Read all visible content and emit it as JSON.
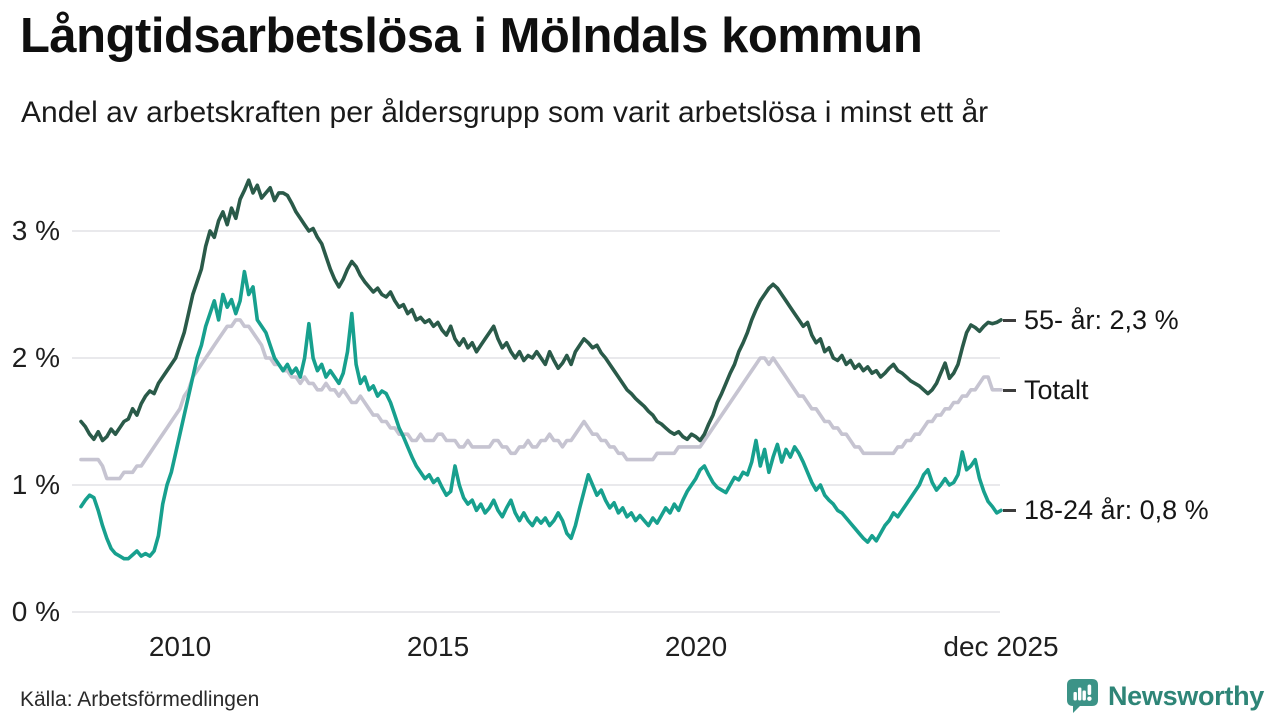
{
  "header": {
    "title": "Långtidsarbetslösa i Mölndals kommun",
    "subtitle": "Andel av arbetskraften per åldersgrupp som varit arbetslösa i minst ett år"
  },
  "footer": {
    "source": "Källa: Arbetsförmedlingen",
    "brand": "Newsworthy"
  },
  "colors": {
    "series_total": "#c6c4d1",
    "series_55": "#2a5a49",
    "series_1824": "#17a08e",
    "grid": "#e6e6e9",
    "label_dash": "#3d3d3d",
    "text": "#1a1a1a",
    "brand_icon": "#3c9387",
    "brand_text": "#2e8577"
  },
  "chart_data": {
    "type": "line",
    "title": "Långtidsarbetslösa i Mölndals kommun",
    "subtitle": "Andel av arbetskraften per åldersgrupp som varit arbetslösa i minst ett år",
    "frequency": "monthly",
    "legend": "end-labels",
    "grid": true,
    "ylim": [
      0,
      3.5
    ],
    "yticks": [
      {
        "label": "3 %",
        "value": 3
      },
      {
        "label": "2 %",
        "value": 2
      },
      {
        "label": "1 %",
        "value": 1
      },
      {
        "label": "0 %",
        "value": 0
      }
    ],
    "xticks": [
      {
        "label": "2010",
        "month_index": 23
      },
      {
        "label": "2015",
        "month_index": 83
      },
      {
        "label": "2020",
        "month_index": 143
      },
      {
        "label": "dec 2025",
        "month_index": 214
      }
    ],
    "series": [
      {
        "id": "total",
        "name": "Totalt",
        "end_label": "Totalt",
        "color": "#c6c4d1",
        "values": [
          1.2,
          1.2,
          1.2,
          1.2,
          1.2,
          1.15,
          1.05,
          1.05,
          1.05,
          1.05,
          1.1,
          1.1,
          1.1,
          1.15,
          1.15,
          1.2,
          1.25,
          1.3,
          1.35,
          1.4,
          1.45,
          1.5,
          1.55,
          1.6,
          1.7,
          1.75,
          1.85,
          1.9,
          1.95,
          2.0,
          2.05,
          2.1,
          2.15,
          2.2,
          2.25,
          2.25,
          2.3,
          2.3,
          2.25,
          2.25,
          2.2,
          2.15,
          2.1,
          2.0,
          2.0,
          1.95,
          1.95,
          1.9,
          1.9,
          1.85,
          1.85,
          1.8,
          1.85,
          1.8,
          1.8,
          1.75,
          1.75,
          1.8,
          1.75,
          1.75,
          1.7,
          1.75,
          1.7,
          1.65,
          1.65,
          1.7,
          1.65,
          1.6,
          1.55,
          1.55,
          1.5,
          1.5,
          1.45,
          1.45,
          1.4,
          1.4,
          1.4,
          1.35,
          1.35,
          1.4,
          1.35,
          1.35,
          1.35,
          1.4,
          1.4,
          1.35,
          1.35,
          1.35,
          1.3,
          1.3,
          1.35,
          1.3,
          1.3,
          1.3,
          1.3,
          1.3,
          1.35,
          1.35,
          1.3,
          1.3,
          1.25,
          1.25,
          1.3,
          1.3,
          1.35,
          1.3,
          1.3,
          1.35,
          1.35,
          1.4,
          1.35,
          1.35,
          1.3,
          1.35,
          1.35,
          1.4,
          1.45,
          1.5,
          1.45,
          1.4,
          1.4,
          1.35,
          1.35,
          1.3,
          1.3,
          1.25,
          1.25,
          1.2,
          1.2,
          1.2,
          1.2,
          1.2,
          1.2,
          1.2,
          1.25,
          1.25,
          1.25,
          1.25,
          1.25,
          1.3,
          1.3,
          1.3,
          1.3,
          1.3,
          1.3,
          1.35,
          1.4,
          1.45,
          1.5,
          1.55,
          1.6,
          1.65,
          1.7,
          1.75,
          1.8,
          1.85,
          1.9,
          1.95,
          2.0,
          2.0,
          1.95,
          2.0,
          1.95,
          1.9,
          1.85,
          1.8,
          1.75,
          1.7,
          1.7,
          1.65,
          1.6,
          1.6,
          1.55,
          1.5,
          1.5,
          1.45,
          1.45,
          1.4,
          1.4,
          1.35,
          1.3,
          1.3,
          1.25,
          1.25,
          1.25,
          1.25,
          1.25,
          1.25,
          1.25,
          1.25,
          1.3,
          1.3,
          1.35,
          1.35,
          1.4,
          1.4,
          1.45,
          1.5,
          1.5,
          1.55,
          1.55,
          1.6,
          1.6,
          1.65,
          1.65,
          1.7,
          1.7,
          1.75,
          1.75,
          1.8,
          1.85,
          1.85,
          1.75,
          1.75,
          1.75
        ]
      },
      {
        "id": "age55",
        "name": "55- år",
        "end_label": "55- år: 2,3 %",
        "end_value": 2.3,
        "color": "#2a5a49",
        "values": [
          1.5,
          1.46,
          1.4,
          1.36,
          1.42,
          1.35,
          1.38,
          1.44,
          1.4,
          1.45,
          1.5,
          1.52,
          1.6,
          1.55,
          1.64,
          1.7,
          1.74,
          1.72,
          1.8,
          1.85,
          1.9,
          1.95,
          2.0,
          2.1,
          2.2,
          2.35,
          2.5,
          2.6,
          2.7,
          2.88,
          3.0,
          2.95,
          3.08,
          3.15,
          3.05,
          3.18,
          3.1,
          3.25,
          3.32,
          3.4,
          3.3,
          3.36,
          3.26,
          3.3,
          3.34,
          3.24,
          3.3,
          3.3,
          3.28,
          3.22,
          3.15,
          3.1,
          3.05,
          3.0,
          3.02,
          2.95,
          2.9,
          2.8,
          2.7,
          2.62,
          2.56,
          2.62,
          2.7,
          2.76,
          2.72,
          2.65,
          2.6,
          2.56,
          2.52,
          2.55,
          2.5,
          2.48,
          2.52,
          2.45,
          2.4,
          2.42,
          2.35,
          2.38,
          2.3,
          2.32,
          2.28,
          2.3,
          2.25,
          2.28,
          2.22,
          2.18,
          2.25,
          2.15,
          2.1,
          2.15,
          2.08,
          2.12,
          2.05,
          2.1,
          2.15,
          2.2,
          2.25,
          2.15,
          2.08,
          2.12,
          2.05,
          2.0,
          2.05,
          1.98,
          2.02,
          2.0,
          2.05,
          2.0,
          1.95,
          2.05,
          1.98,
          1.92,
          1.96,
          2.02,
          1.95,
          2.05,
          2.1,
          2.15,
          2.12,
          2.08,
          2.1,
          2.04,
          2.0,
          1.95,
          1.9,
          1.85,
          1.8,
          1.75,
          1.72,
          1.68,
          1.65,
          1.62,
          1.58,
          1.55,
          1.5,
          1.48,
          1.45,
          1.42,
          1.4,
          1.42,
          1.38,
          1.36,
          1.4,
          1.38,
          1.35,
          1.4,
          1.48,
          1.55,
          1.65,
          1.72,
          1.8,
          1.88,
          1.95,
          2.05,
          2.12,
          2.2,
          2.3,
          2.38,
          2.45,
          2.5,
          2.55,
          2.58,
          2.55,
          2.5,
          2.45,
          2.4,
          2.35,
          2.3,
          2.25,
          2.28,
          2.18,
          2.12,
          2.15,
          2.05,
          2.08,
          2.0,
          1.98,
          2.02,
          1.95,
          1.98,
          1.92,
          1.95,
          1.9,
          1.93,
          1.88,
          1.9,
          1.85,
          1.88,
          1.92,
          1.95,
          1.9,
          1.88,
          1.85,
          1.82,
          1.8,
          1.78,
          1.75,
          1.72,
          1.75,
          1.8,
          1.88,
          1.96,
          1.84,
          1.88,
          1.95,
          2.08,
          2.2,
          2.26,
          2.24,
          2.21,
          2.25,
          2.28,
          2.27,
          2.28,
          2.3
        ]
      },
      {
        "id": "age1824",
        "name": "18-24 år",
        "end_label": "18-24 år: 0,8 %",
        "end_value": 0.8,
        "color": "#17a08e",
        "values": [
          0.83,
          0.88,
          0.92,
          0.9,
          0.8,
          0.68,
          0.58,
          0.5,
          0.46,
          0.44,
          0.42,
          0.42,
          0.45,
          0.48,
          0.44,
          0.46,
          0.44,
          0.48,
          0.6,
          0.85,
          1.0,
          1.1,
          1.25,
          1.4,
          1.55,
          1.7,
          1.85,
          2.0,
          2.1,
          2.25,
          2.35,
          2.45,
          2.3,
          2.5,
          2.4,
          2.46,
          2.35,
          2.45,
          2.68,
          2.5,
          2.56,
          2.3,
          2.25,
          2.2,
          2.1,
          2.0,
          1.95,
          1.9,
          1.95,
          1.88,
          1.92,
          1.85,
          2.0,
          2.27,
          2.0,
          1.9,
          1.95,
          1.85,
          1.9,
          1.85,
          1.8,
          1.88,
          2.05,
          2.35,
          1.95,
          1.8,
          1.85,
          1.75,
          1.78,
          1.7,
          1.74,
          1.72,
          1.65,
          1.55,
          1.45,
          1.38,
          1.3,
          1.22,
          1.15,
          1.1,
          1.05,
          1.08,
          1.02,
          1.05,
          0.98,
          0.92,
          0.95,
          1.15,
          1.0,
          0.9,
          0.85,
          0.88,
          0.8,
          0.85,
          0.78,
          0.82,
          0.88,
          0.8,
          0.75,
          0.82,
          0.88,
          0.78,
          0.72,
          0.78,
          0.72,
          0.68,
          0.74,
          0.7,
          0.74,
          0.68,
          0.72,
          0.78,
          0.72,
          0.62,
          0.58,
          0.68,
          0.82,
          0.95,
          1.08,
          1.0,
          0.92,
          0.96,
          0.88,
          0.82,
          0.86,
          0.78,
          0.82,
          0.75,
          0.78,
          0.72,
          0.76,
          0.72,
          0.68,
          0.74,
          0.7,
          0.76,
          0.82,
          0.78,
          0.85,
          0.8,
          0.88,
          0.95,
          1.0,
          1.05,
          1.12,
          1.15,
          1.08,
          1.02,
          0.98,
          0.96,
          0.94,
          1.0,
          1.06,
          1.04,
          1.1,
          1.08,
          1.18,
          1.35,
          1.15,
          1.28,
          1.1,
          1.22,
          1.32,
          1.18,
          1.28,
          1.22,
          1.3,
          1.25,
          1.18,
          1.1,
          1.02,
          0.96,
          1.0,
          0.92,
          0.88,
          0.85,
          0.8,
          0.78,
          0.74,
          0.7,
          0.66,
          0.62,
          0.58,
          0.55,
          0.6,
          0.56,
          0.62,
          0.68,
          0.72,
          0.78,
          0.75,
          0.8,
          0.85,
          0.9,
          0.95,
          1.0,
          1.08,
          1.12,
          1.02,
          0.96,
          1.0,
          1.05,
          1.0,
          1.02,
          1.08,
          1.26,
          1.12,
          1.15,
          1.2,
          1.05,
          0.95,
          0.87,
          0.83,
          0.78,
          0.8
        ]
      }
    ]
  }
}
